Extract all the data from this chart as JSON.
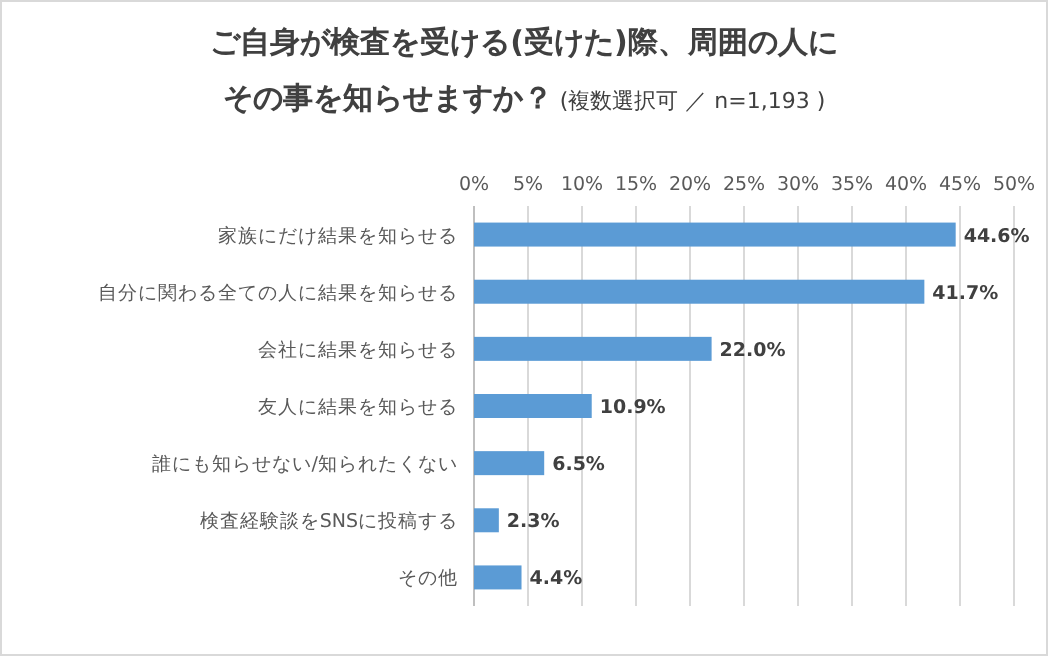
{
  "chart_data": {
    "type": "bar",
    "orientation": "horizontal",
    "title": "ご自身が検査を受ける(受けた)際、周囲の人にその事を知らせますか？",
    "subtitle": "(複数選択可 ／ n=1,193 )",
    "categories": [
      "家族にだけ結果を知らせる",
      "自分に関わる全ての人に結果を知らせる",
      "会社に結果を知らせる",
      "友人に結果を知らせる",
      "誰にも知らせない/知られたくない",
      "検査経験談をSNSに投稿する",
      "その他"
    ],
    "values": [
      44.6,
      41.7,
      22.0,
      10.9,
      6.5,
      2.3,
      4.4
    ],
    "value_labels": [
      "44.6%",
      "41.7%",
      "22.0%",
      "10.9%",
      "6.5%",
      "2.3%",
      "4.4%"
    ],
    "color": "#5b9bd5",
    "xlim": [
      0,
      50
    ],
    "xticks": [
      {
        "value": 0,
        "label": "0%"
      },
      {
        "value": 5,
        "label": "5%"
      },
      {
        "value": 10,
        "label": "10%"
      },
      {
        "value": 15,
        "label": "15%"
      },
      {
        "value": 20,
        "label": "20%"
      },
      {
        "value": 25,
        "label": "25%"
      },
      {
        "value": 30,
        "label": "30%"
      },
      {
        "value": 35,
        "label": "35%"
      },
      {
        "value": 40,
        "label": "40%"
      },
      {
        "value": 45,
        "label": "45%"
      },
      {
        "value": 50,
        "label": "50%"
      }
    ],
    "grid": "x"
  }
}
